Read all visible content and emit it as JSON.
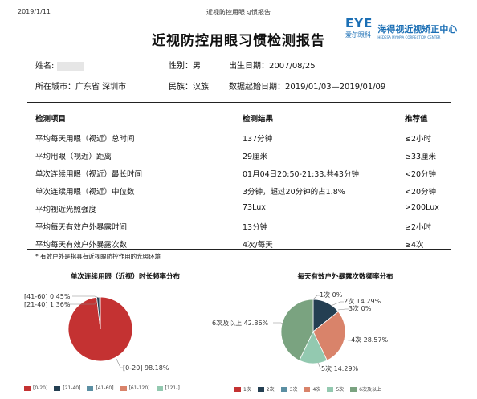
{
  "print_header": {
    "date": "2019/1/11",
    "doc_title": "近视防控用眼习惯报告"
  },
  "title": "近视防控用眼习惯检测报告",
  "logo": {
    "mark": "EYE",
    "cn_brand": "爱尔眼科",
    "cn_center": "海得视近视矫正中心",
    "en_center": "HEDESA MYOPIA CORRECTION CENTER"
  },
  "info": {
    "name_label": "姓名:",
    "gender": "性别：男",
    "birth": "出生日期：2007/08/25",
    "city": "所在城市：广东省 深圳市",
    "ethnicity": "民族：汉族",
    "date_range": "数据起始日期：2019/01/03—2019/01/09"
  },
  "table": {
    "headers": [
      "检测项目",
      "检测结果",
      "推荐值"
    ],
    "rows": [
      [
        "平均每天用眼（视近）总时间",
        "137分钟",
        "≤2小时"
      ],
      [
        "平均用眼（视近）距离",
        "29厘米",
        "≥33厘米"
      ],
      [
        "单次连续用眼（视近）最长时间",
        "01月04日20:50-21:33,共43分钟",
        "<20分钟"
      ],
      [
        "单次连续用眼（视近）中位数",
        "3分钟，超过20分钟的占1.8%",
        "<20分钟"
      ],
      [
        "平均视近光照强度",
        "73Lux",
        ">200Lux"
      ],
      [
        "平均每天有效户外暴露时间",
        "13分钟",
        "≥2小时"
      ],
      [
        "平均每天有效户外暴露次数",
        "4次/每天",
        "≥4次"
      ]
    ]
  },
  "note": "* 有效户外是指具有近视眼防控作用的光照环境",
  "chart_data": [
    {
      "type": "pie",
      "title": "单次连续用眼（近视）时长频率分布",
      "categories": [
        "[0-20]",
        "[21-40]",
        "[41-60]",
        "[61-120]",
        "[121-]"
      ],
      "values": [
        98.18,
        1.36,
        0.45,
        0,
        0
      ],
      "slice_labels": [
        "[0-20] 98.18%",
        "[21-40] 1.36%",
        "[41-60] 0.45%",
        "",
        ""
      ],
      "colors": [
        "#c43232",
        "#243f52",
        "#5b8fa3",
        "#d9836a",
        "#93c9b0"
      ],
      "legend": "bottom"
    },
    {
      "type": "pie",
      "title": "每天有效户外暴露次数频率分布",
      "categories": [
        "1次",
        "2次",
        "3次",
        "4次",
        "5次",
        "6次及以上"
      ],
      "values": [
        0,
        14.29,
        0,
        28.57,
        14.29,
        42.86
      ],
      "slice_labels": [
        "1次 0%",
        "2次 14.29%",
        "3次 0%",
        "4次 28.57%",
        "5次 14.29%",
        "6次及以上 42.86%"
      ],
      "colors": [
        "#c43232",
        "#243f52",
        "#5b8fa3",
        "#d9836a",
        "#93c9b0",
        "#7aa380"
      ],
      "legend": "bottom"
    }
  ]
}
